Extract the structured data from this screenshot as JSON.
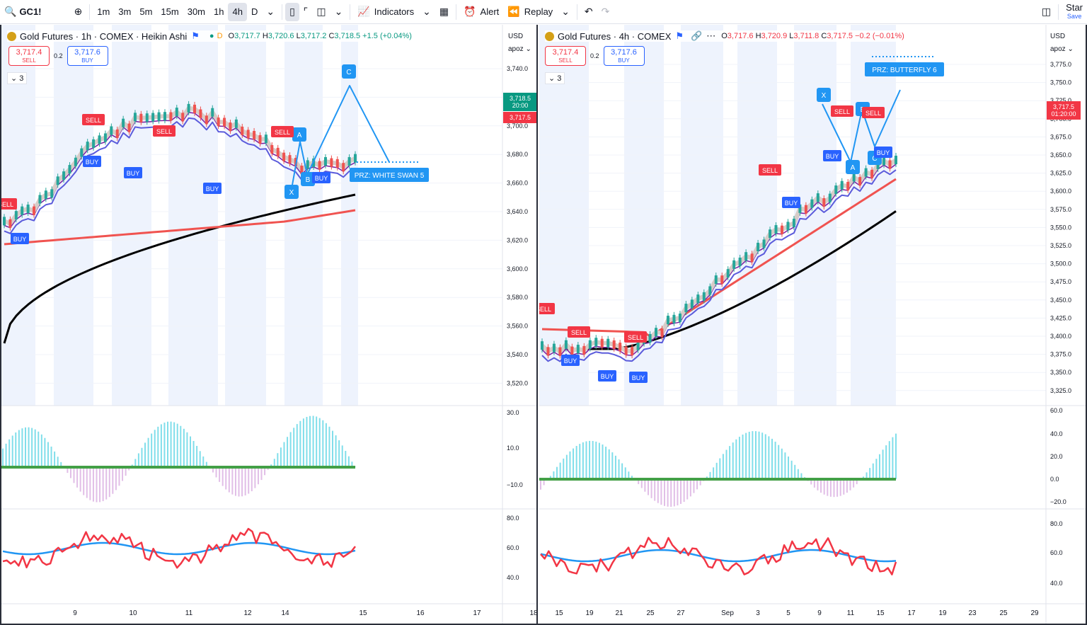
{
  "topbar": {
    "symbol": "GC1!",
    "intervals": [
      "1m",
      "3m",
      "5m",
      "15m",
      "30m",
      "1h",
      "4h",
      "D"
    ],
    "active_interval": "4h",
    "indicators_label": "Indicators",
    "alert_label": "Alert",
    "replay_label": "Replay",
    "star_label": "Star",
    "save_label": "Save"
  },
  "left": {
    "title": "Gold Futures · 1h · COMEX · Heikin Ashi",
    "ohlc": {
      "o": "3,717.7",
      "h": "3,720.6",
      "l": "3,717.2",
      "c": "3,718.5",
      "chg": "+1.5 (+0.04%)"
    },
    "sell_price": "3,717.4",
    "buy_price": "3,717.6",
    "sell_label": "SELL",
    "buy_label": "BUY",
    "spread": "0.2",
    "collapse_count": "3",
    "currency": "USD",
    "scale_mode": "apoz",
    "price_ticks": [
      "3,740.0",
      "3,720.0",
      "3,700.0",
      "3,680.0",
      "3,660.0",
      "3,640.0",
      "3,620.0",
      "3,600.0",
      "3,580.0",
      "3,560.0",
      "3,540.0",
      "3,520.0"
    ],
    "last_price_tag": "3,718.5",
    "countdown": "20:00",
    "bid_tag": "3,717.5",
    "osc_ticks": [
      "30.0",
      "10.0",
      "−10.0"
    ],
    "rsi_ticks": [
      "80.0",
      "60.0",
      "40.0"
    ],
    "x_ticks": [
      "9",
      "10",
      "11",
      "12",
      "14",
      "15",
      "16",
      "17",
      "18"
    ],
    "prz_label": "PRZ: WHITE SWAN 5",
    "pattern_points": [
      "X",
      "A",
      "B",
      "C"
    ],
    "signals_sell": [
      "SELL",
      "SELL",
      "SELL",
      "SELL"
    ],
    "signals_buy": [
      "BUY",
      "BUY",
      "BUY",
      "BUY",
      "BUY"
    ]
  },
  "right": {
    "title": "Gold Futures · 4h · COMEX",
    "ohlc": {
      "o": "3,717.6",
      "h": "3,720.9",
      "l": "3,711.8",
      "c": "3,717.5",
      "chg": "−0.2 (−0.01%)"
    },
    "sell_price": "3,717.4",
    "buy_price": "3,717.6",
    "sell_label": "SELL",
    "buy_label": "BUY",
    "spread": "0.2",
    "collapse_count": "3",
    "currency": "USD",
    "scale_mode": "apoz",
    "price_ticks": [
      "3,775.0",
      "3,750.0",
      "3,725.0",
      "3,700.0",
      "3,675.0",
      "3,650.0",
      "3,625.0",
      "3,600.0",
      "3,575.0",
      "3,550.0",
      "3,525.0",
      "3,500.0",
      "3,475.0",
      "3,450.0",
      "3,425.0",
      "3,400.0",
      "3,375.0",
      "3,350.0",
      "3,325.0"
    ],
    "last_price_tag": "3,717.5",
    "countdown": "01:20:00",
    "osc_ticks": [
      "60.0",
      "40.0",
      "20.0",
      "0.0",
      "−20.0"
    ],
    "rsi_ticks": [
      "80.0",
      "60.0",
      "40.0"
    ],
    "x_ticks": [
      "15",
      "19",
      "21",
      "25",
      "27",
      "Sep",
      "3",
      "5",
      "9",
      "11",
      "15",
      "17",
      "19",
      "23",
      "25",
      "29"
    ],
    "prz_label": "PRZ: BUTTERFLY 6",
    "pattern_points": [
      "X",
      "A",
      "B",
      "C"
    ],
    "signals_sell": [
      "SELL",
      "SELL",
      "SELL",
      "SELL",
      "SELL",
      "SELL"
    ],
    "signals_buy": [
      "BUY",
      "BUY",
      "BUY",
      "BUY",
      "BUY",
      "BUY"
    ]
  },
  "colors": {
    "sell": "#f23645",
    "buy": "#2962ff",
    "prz": "#2196f3",
    "ema_black": "#000000",
    "ema_red": "#f05350",
    "ema_purple": "#7b1fa2",
    "ema_blue": "#5b5bdb",
    "osc_pos": "#80deea",
    "osc_neg": "#e1bee7",
    "rsi_red": "#f23645",
    "rsi_blue": "#2196f3"
  }
}
